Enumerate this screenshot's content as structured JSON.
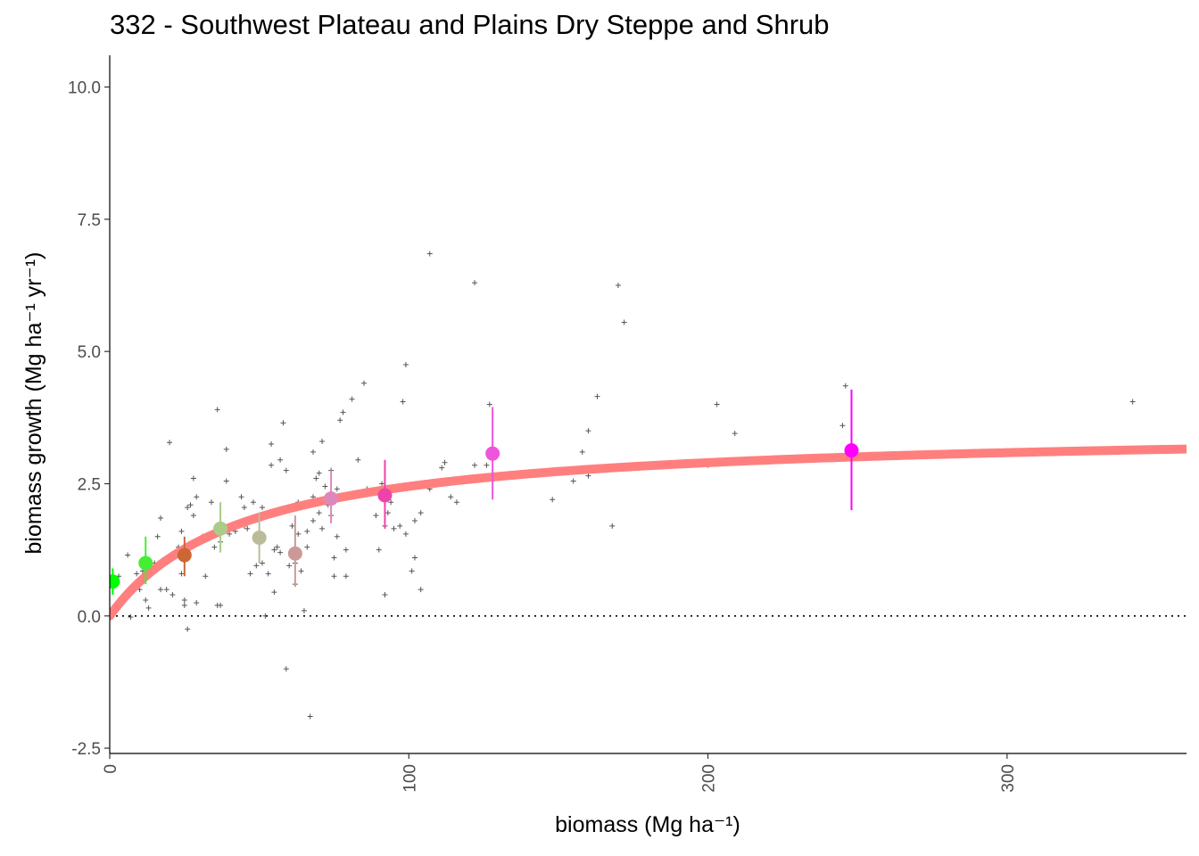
{
  "chart_data": {
    "type": "scatter",
    "title": "332 - Southwest Plateau and Plains Dry Steppe and Shrub",
    "xlabel": "biomass (Mg ha⁻¹)",
    "ylabel": "biomass growth (Mg ha⁻¹ yr⁻¹)",
    "xlim": [
      0,
      360
    ],
    "ylim": [
      -2.6,
      10.6
    ],
    "x_ticks": [
      "0",
      "100",
      "200",
      "300"
    ],
    "x_tick_values": [
      0,
      100,
      200,
      300
    ],
    "y_ticks": [
      "10.0",
      "7.5",
      "5.0",
      "2.5",
      "0.0",
      "-2.5"
    ],
    "y_tick_values": [
      10,
      7.5,
      5,
      2.5,
      0,
      -2.5
    ],
    "grid": false,
    "zero_reference_line": 0,
    "fit_curve": {
      "model": "asymptotic",
      "asymptote": 3.55,
      "half_saturation": 45,
      "color": "#ff7f7f"
    },
    "binned_means": [
      {
        "x": 1,
        "y": 0.65,
        "ylow": 0.4,
        "yhigh": 0.9,
        "color": "#00ff00"
      },
      {
        "x": 12,
        "y": 1.0,
        "ylow": 0.6,
        "yhigh": 1.5,
        "color": "#44ee33"
      },
      {
        "x": 25,
        "y": 1.15,
        "ylow": 0.75,
        "yhigh": 1.5,
        "color": "#cc6633"
      },
      {
        "x": 37,
        "y": 1.65,
        "ylow": 1.2,
        "yhigh": 2.15,
        "color": "#aacc88"
      },
      {
        "x": 50,
        "y": 1.48,
        "ylow": 1.0,
        "yhigh": 1.95,
        "color": "#bbbb99"
      },
      {
        "x": 62,
        "y": 1.18,
        "ylow": 0.55,
        "yhigh": 1.9,
        "color": "#cc9999"
      },
      {
        "x": 74,
        "y": 2.22,
        "ylow": 1.75,
        "yhigh": 2.75,
        "color": "#dd88bb"
      },
      {
        "x": 92,
        "y": 2.28,
        "ylow": 1.65,
        "yhigh": 2.95,
        "color": "#ee44aa"
      },
      {
        "x": 128,
        "y": 3.07,
        "ylow": 2.2,
        "yhigh": 3.95,
        "color": "#ee55dd"
      },
      {
        "x": 248,
        "y": 3.13,
        "ylow": 2.0,
        "yhigh": 4.28,
        "color": "#ff00ff"
      }
    ],
    "raw_points": [
      [
        3,
        0.75
      ],
      [
        6,
        1.15
      ],
      [
        7,
        -0.02
      ],
      [
        9,
        0.8
      ],
      [
        10,
        0.5
      ],
      [
        11,
        0.85
      ],
      [
        12,
        0.3
      ],
      [
        13,
        0.15
      ],
      [
        15,
        1.0
      ],
      [
        16,
        1.5
      ],
      [
        17,
        1.85
      ],
      [
        17,
        0.5
      ],
      [
        19,
        0.5
      ],
      [
        20,
        3.28
      ],
      [
        21,
        0.4
      ],
      [
        22,
        1.2
      ],
      [
        23,
        1.3
      ],
      [
        24,
        1.6
      ],
      [
        24,
        0.8
      ],
      [
        25,
        0.3
      ],
      [
        25,
        0.2
      ],
      [
        26,
        2.05
      ],
      [
        26,
        -0.25
      ],
      [
        27,
        2.1
      ],
      [
        28,
        2.6
      ],
      [
        28,
        1.9
      ],
      [
        29,
        2.25
      ],
      [
        29,
        0.25
      ],
      [
        31,
        1.5
      ],
      [
        32,
        0.75
      ],
      [
        34,
        2.15
      ],
      [
        35,
        1.3
      ],
      [
        36,
        3.9
      ],
      [
        36,
        0.2
      ],
      [
        37,
        0.2
      ],
      [
        37,
        1.4
      ],
      [
        39,
        3.15
      ],
      [
        39,
        2.55
      ],
      [
        40,
        1.55
      ],
      [
        42,
        1.6
      ],
      [
        44,
        2.25
      ],
      [
        45,
        2.05
      ],
      [
        45,
        1.7
      ],
      [
        46,
        1.65
      ],
      [
        47,
        0.8
      ],
      [
        48,
        2.15
      ],
      [
        49,
        0.95
      ],
      [
        50,
        1.8
      ],
      [
        51,
        1.0
      ],
      [
        51,
        2.05
      ],
      [
        52,
        0.0
      ],
      [
        53,
        0.8
      ],
      [
        54,
        2.85
      ],
      [
        54,
        3.25
      ],
      [
        55,
        0.45
      ],
      [
        55,
        1.25
      ],
      [
        56,
        1.3
      ],
      [
        57,
        2.95
      ],
      [
        57,
        1.2
      ],
      [
        58,
        3.65
      ],
      [
        59,
        2.75
      ],
      [
        59,
        -1.0
      ],
      [
        60,
        0.95
      ],
      [
        61,
        1.7
      ],
      [
        62,
        0.6
      ],
      [
        62,
        1.0
      ],
      [
        63,
        2.15
      ],
      [
        63,
        1.55
      ],
      [
        64,
        0.85
      ],
      [
        65,
        0.1
      ],
      [
        66,
        1.3
      ],
      [
        66,
        1.6
      ],
      [
        67,
        -1.9
      ],
      [
        68,
        2.25
      ],
      [
        68,
        1.8
      ],
      [
        68,
        3.1
      ],
      [
        69,
        2.6
      ],
      [
        70,
        2.7
      ],
      [
        70,
        1.95
      ],
      [
        71,
        1.65
      ],
      [
        71,
        3.3
      ],
      [
        72,
        2.45
      ],
      [
        73,
        2.1
      ],
      [
        74,
        1.9
      ],
      [
        74,
        2.75
      ],
      [
        75,
        1.1
      ],
      [
        75,
        0.75
      ],
      [
        76,
        2.4
      ],
      [
        76,
        1.5
      ],
      [
        77,
        3.7
      ],
      [
        78,
        3.85
      ],
      [
        79,
        0.75
      ],
      [
        79,
        1.25
      ],
      [
        81,
        4.1
      ],
      [
        83,
        2.95
      ],
      [
        85,
        4.4
      ],
      [
        86,
        2.4
      ],
      [
        89,
        1.9
      ],
      [
        90,
        1.25
      ],
      [
        91,
        2.5
      ],
      [
        92,
        0.4
      ],
      [
        92,
        1.7
      ],
      [
        93,
        1.95
      ],
      [
        94,
        2.15
      ],
      [
        95,
        1.65
      ],
      [
        97,
        1.7
      ],
      [
        98,
        4.05
      ],
      [
        99,
        1.55
      ],
      [
        99,
        4.75
      ],
      [
        101,
        0.85
      ],
      [
        102,
        1.1
      ],
      [
        102,
        1.8
      ],
      [
        104,
        1.95
      ],
      [
        104,
        0.5
      ],
      [
        107,
        6.85
      ],
      [
        107,
        2.4
      ],
      [
        111,
        2.8
      ],
      [
        112,
        2.9
      ],
      [
        114,
        2.25
      ],
      [
        116,
        2.15
      ],
      [
        122,
        6.3
      ],
      [
        122,
        2.85
      ],
      [
        126,
        2.85
      ],
      [
        127,
        4.0
      ],
      [
        148,
        2.2
      ],
      [
        155,
        2.55
      ],
      [
        158,
        3.1
      ],
      [
        160,
        3.5
      ],
      [
        160,
        2.65
      ],
      [
        163,
        4.15
      ],
      [
        168,
        1.7
      ],
      [
        170,
        6.25
      ],
      [
        172,
        5.55
      ],
      [
        200,
        2.85
      ],
      [
        203,
        2.9
      ],
      [
        203,
        4.0
      ],
      [
        209,
        3.45
      ],
      [
        245,
        3.6
      ],
      [
        246,
        4.35
      ],
      [
        342,
        4.05
      ]
    ]
  }
}
